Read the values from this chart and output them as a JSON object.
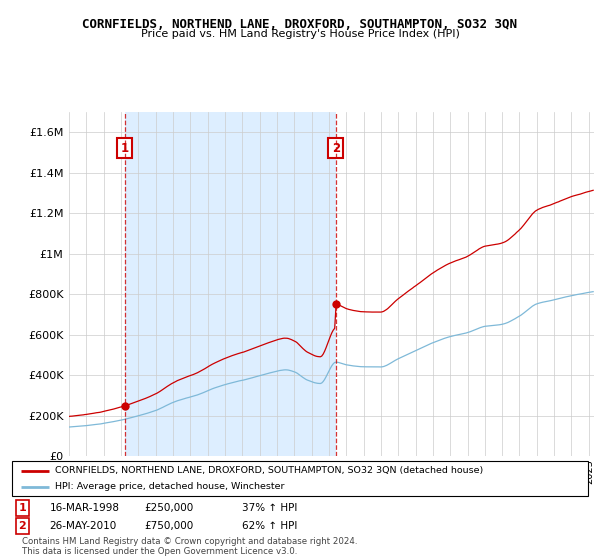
{
  "title": "CORNFIELDS, NORTHEND LANE, DROXFORD, SOUTHAMPTON, SO32 3QN",
  "subtitle": "Price paid vs. HM Land Registry's House Price Index (HPI)",
  "legend_line1": "CORNFIELDS, NORTHEND LANE, DROXFORD, SOUTHAMPTON, SO32 3QN (detached house)",
  "legend_line2": "HPI: Average price, detached house, Winchester",
  "annotation1_date": "16-MAR-1998",
  "annotation1_price": "£250,000",
  "annotation1_hpi": "37% ↑ HPI",
  "annotation2_date": "26-MAY-2010",
  "annotation2_price": "£750,000",
  "annotation2_hpi": "62% ↑ HPI",
  "copyright": "Contains HM Land Registry data © Crown copyright and database right 2024.\nThis data is licensed under the Open Government Licence v3.0.",
  "sale1_year": 1998.21,
  "sale1_price": 250000,
  "sale2_year": 2010.4,
  "sale2_price": 750000,
  "hpi_color": "#7fb9d8",
  "price_color": "#cc0000",
  "shade_color": "#ddeeff",
  "ylim_max": 1700000,
  "ylim_min": 0,
  "yticks": [
    0,
    200000,
    400000,
    600000,
    800000,
    1000000,
    1200000,
    1400000,
    1600000
  ],
  "xlim_min": 1995.0,
  "xlim_max": 2025.3,
  "grid_color": "#cccccc"
}
